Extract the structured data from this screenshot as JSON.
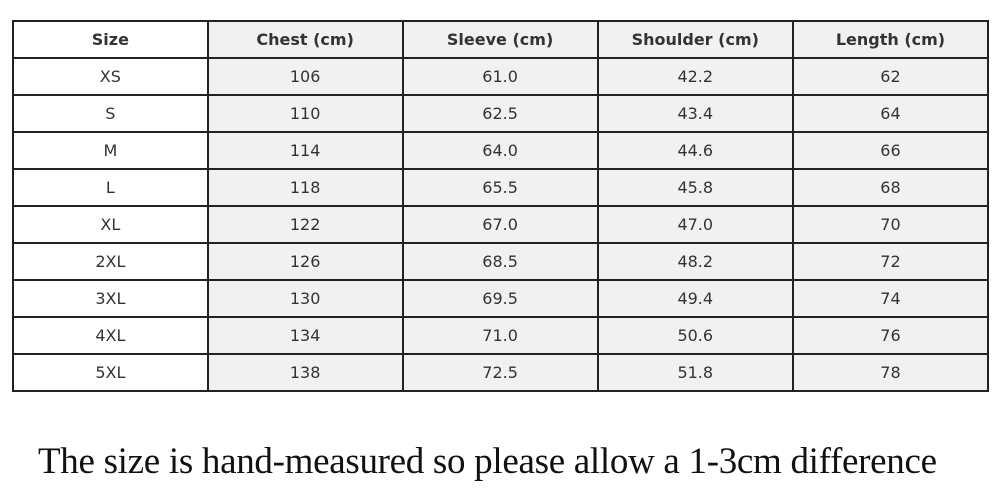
{
  "table": {
    "headers": [
      "Size",
      "Chest (cm)",
      "Sleeve (cm)",
      "Shoulder (cm)",
      "Length (cm)"
    ],
    "rows": [
      [
        "XS",
        "106",
        "61.0",
        "42.2",
        "62"
      ],
      [
        "S",
        "110",
        "62.5",
        "43.4",
        "64"
      ],
      [
        "M",
        "114",
        "64.0",
        "44.6",
        "66"
      ],
      [
        "L",
        "118",
        "65.5",
        "45.8",
        "68"
      ],
      [
        "XL",
        "122",
        "67.0",
        "47.0",
        "70"
      ],
      [
        "2XL",
        "126",
        "68.5",
        "48.2",
        "72"
      ],
      [
        "3XL",
        "130",
        "69.5",
        "49.4",
        "74"
      ],
      [
        "4XL",
        "134",
        "71.0",
        "50.6",
        "76"
      ],
      [
        "5XL",
        "138",
        "72.5",
        "51.8",
        "78"
      ]
    ]
  },
  "note": "The size is hand-measured so please allow a 1-3cm difference"
}
